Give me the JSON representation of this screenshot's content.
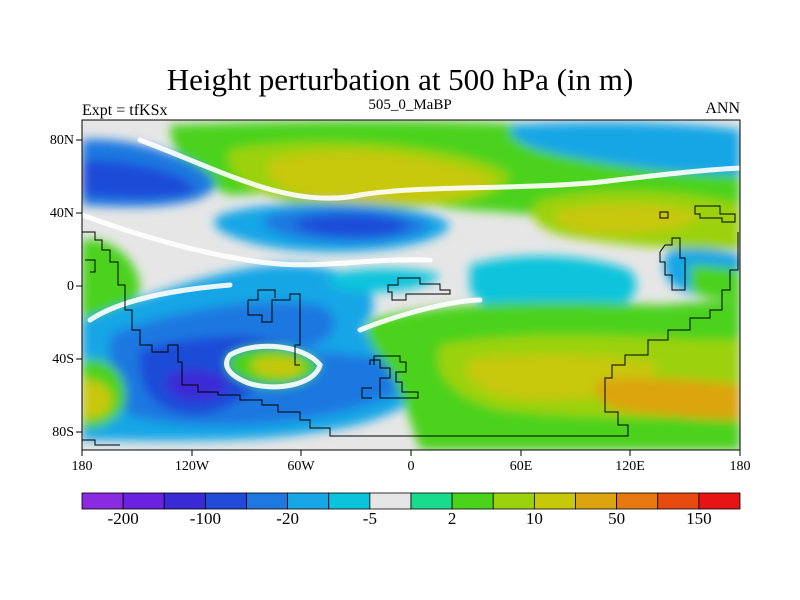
{
  "chart_data": {
    "type": "heatmap",
    "title": "Height perturbation at 500 hPa (in m)",
    "subtitle_left": "Expt = tfKSx",
    "subtitle_center": "505_0_MaBP",
    "subtitle_right": "ANN",
    "x_ticks": [
      "180",
      "120W",
      "60W",
      "0",
      "60E",
      "120E",
      "180"
    ],
    "y_ticks": [
      "80N",
      "40N",
      "0",
      "40S",
      "80S"
    ],
    "colorbar": {
      "levels_shown": [
        "-200",
        "-100",
        "-20",
        "-5",
        "2",
        "10",
        "50",
        "150"
      ],
      "colors": [
        "#8a2be2",
        "#6a22e0",
        "#3a2ad6",
        "#1f4bd8",
        "#1f78e0",
        "#18a6e6",
        "#0ac4dc",
        "#e6e6e6",
        "#18dc8c",
        "#4bd21a",
        "#9bd20e",
        "#c8c80a",
        "#dca50f",
        "#e6780f",
        "#e64a0f",
        "#e61414"
      ]
    }
  }
}
